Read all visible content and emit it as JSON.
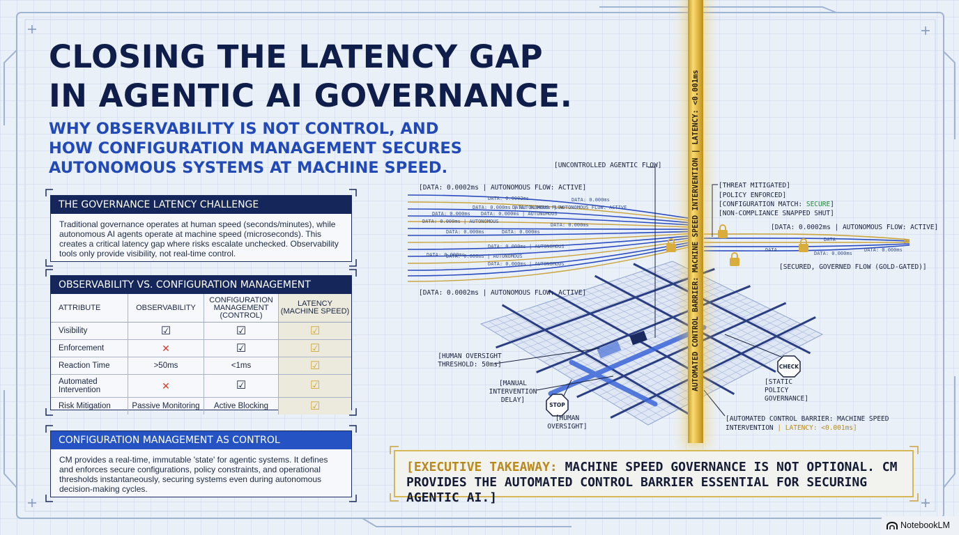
{
  "header": {
    "title_lines": [
      "CLOSING THE LATENCY GAP",
      "IN AGENTIC AI GOVERNANCE."
    ],
    "subtitle_lines": [
      "WHY OBSERVABILITY IS NOT CONTROL, AND",
      "HOW CONFIGURATION MANAGEMENT SECURES",
      "AUTONOMOUS SYSTEMS AT MACHINE SPEED."
    ]
  },
  "challenge": {
    "heading": "THE GOVERNANCE LATENCY CHALLENGE",
    "body": "Traditional governance operates at human speed (seconds/minutes), while autonomous AI agents operate at machine speed (microseconds). This creates a critical latency gap where risks escalate unchecked. Observability tools only provide visibility, not real-time control."
  },
  "comparison": {
    "heading": "OBSERVABILITY vs. CONFIGURATION MANAGEMENT",
    "columns": [
      "ATTRIBUTE",
      "OBSERVABILITY",
      "CONFIGURATION MANAGEMENT (CONTROL)",
      "LATENCY (MACHINE SPEED)"
    ],
    "rows": [
      {
        "attribute": "Visibility",
        "observability": "✓",
        "cm": "✓",
        "latency": "✓"
      },
      {
        "attribute": "Enforcement",
        "observability": "✗",
        "cm": "✓",
        "latency": "✓"
      },
      {
        "attribute": "Reaction Time",
        "observability": ">50ms",
        "cm": "<1ms",
        "latency": "✓"
      },
      {
        "attribute": "Automated Intervention",
        "observability": "✗",
        "cm": "✓",
        "latency": "✓"
      },
      {
        "attribute": "Risk Mitigation",
        "observability": "Passive Monitoring",
        "cm": "Active Blocking",
        "latency": "✓"
      }
    ]
  },
  "cm_control": {
    "heading": "CONFIGURATION MANAGEMENT AS CONTROL",
    "body": "CM provides a real-time, immutable 'state' for agentic systems. It defines and enforces secure configurations, policy constraints, and operational thresholds instantaneously, securing systems even during autonomous decision-making cycles."
  },
  "diagram": {
    "barrier_label": "AUTOMATED CONTROL BARRIER: MACHINE SPEED INTERVENTION | LATENCY: <0.001ms",
    "uncontrolled_flow": "[UNCONTROLLED AGENTIC FLOW]",
    "data_flow_top": "[DATA: 0.0002ms | AUTONOMOUS FLOW: ACTIVE]",
    "data_flow_bottom": "[DATA: 0.0002ms | AUTONOMOUS FLOW: ACTIVE]",
    "data_flow_right": "[DATA: 0.0002ms | AUTONOMOUS FLOW: ACTIVE]",
    "status": {
      "threat": "[THREAT MITIGATED]",
      "policy": "[POLICY ENFORCED]",
      "config_prefix": "[CONFIGURATION MATCH: ",
      "config_value": "SECURE",
      "config_suffix": "]",
      "noncompliance": "[NON-COMPLIANCE SNAPPED SHUT]"
    },
    "secured_flow": "[SECURED, GOVERNED FLOW (GOLD-GATED)]",
    "threshold": "[HUMAN OVERSIGHT THRESHOLD: 50ms]",
    "manual_delay": "[MANUAL INTERVENTION DELAY]",
    "stop_sign": "STOP",
    "human_oversight": "[HUMAN OVERSIGHT]",
    "check_sign": "CHECK",
    "static_policy": "[STATIC POLICY GOVERNANCE]",
    "barrier_caption_main": "[AUTOMATED CONTROL BARRIER: MACHINE SPEED INTERVENTION ",
    "barrier_caption_gold": "| LATENCY: <0.001ms]",
    "mini_labels": [
      "DATA: 0.0002ms",
      "DATA: 0.000ms",
      "DATA: 0.000ms | AUTONOMOUS FLOW",
      "DATA: 0.000ms | AUTONOMOUS FLOW: ACTIVE",
      "DATA: 0.000ms",
      "DATA: 0.000ms | AUTONOMOUS",
      "DATA: 0.000ms | AUTONOMOUS",
      "DATA: 0.000ms",
      "DATA: 0.000ms",
      "DATA: 0.000ms",
      "DATA: 0.000ms | AUTONOMOUS",
      "DATA: 0.000ms",
      "DATA: 0.000ms | AUTONOMOUS",
      "DATA: 0.000ms | AUTONOMOUS"
    ],
    "right_mini": [
      "DATA",
      "DATA: 0.000ms",
      "DATA: 0.000ms",
      "DATA"
    ]
  },
  "takeaway": {
    "gold": "[EXECUTIVE TAKEAWAY:",
    "text": " MACHINE SPEED GOVERNANCE IS NOT OPTIONAL. CM PROVIDES THE AUTOMATED CONTROL BARRIER ESSENTIAL FOR SECURING AGENTIC AI.]"
  },
  "branding": {
    "name": "NotebookLM"
  },
  "colors": {
    "navy": "#15275a",
    "royal_blue": "#2553c4",
    "gold": "#d9ad3c",
    "secure_green": "#1f8a3c",
    "cross_red": "#d63a2a"
  }
}
